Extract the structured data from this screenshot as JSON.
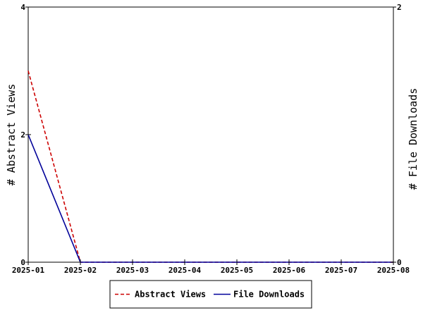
{
  "chart_data": {
    "type": "line",
    "x": [
      "2025-01",
      "2025-02",
      "2025-03",
      "2025-04",
      "2025-05",
      "2025-06",
      "2025-07",
      "2025-08"
    ],
    "series": [
      {
        "name": "Abstract Views",
        "axis": "left",
        "color": "#cc0000",
        "dash": "dashed",
        "x": [
          "2025-01",
          "2025-02",
          "2025-03",
          "2025-04",
          "2025-05",
          "2025-06",
          "2025-07",
          "2025-08"
        ],
        "values": [
          3,
          0,
          0,
          0,
          0,
          0,
          0,
          0
        ]
      },
      {
        "name": "File Downloads",
        "axis": "right",
        "color": "#000099",
        "dash": "solid",
        "x": [
          "2025-01",
          "2025-02",
          "2025-03",
          "2025-04",
          "2025-05",
          "2025-06",
          "2025-07",
          "2025-08"
        ],
        "values": [
          1,
          0,
          0,
          0,
          0,
          0,
          0,
          0
        ]
      }
    ],
    "ylabel_left": "# Abstract Views",
    "ylabel_right": "# File Downloads",
    "ylim_left": [
      0,
      4
    ],
    "ylim_right": [
      0,
      2
    ],
    "yticks_left": [
      0,
      2,
      4
    ],
    "yticks_right": [
      0,
      2
    ],
    "grid": false,
    "legend": "bottom-center"
  }
}
